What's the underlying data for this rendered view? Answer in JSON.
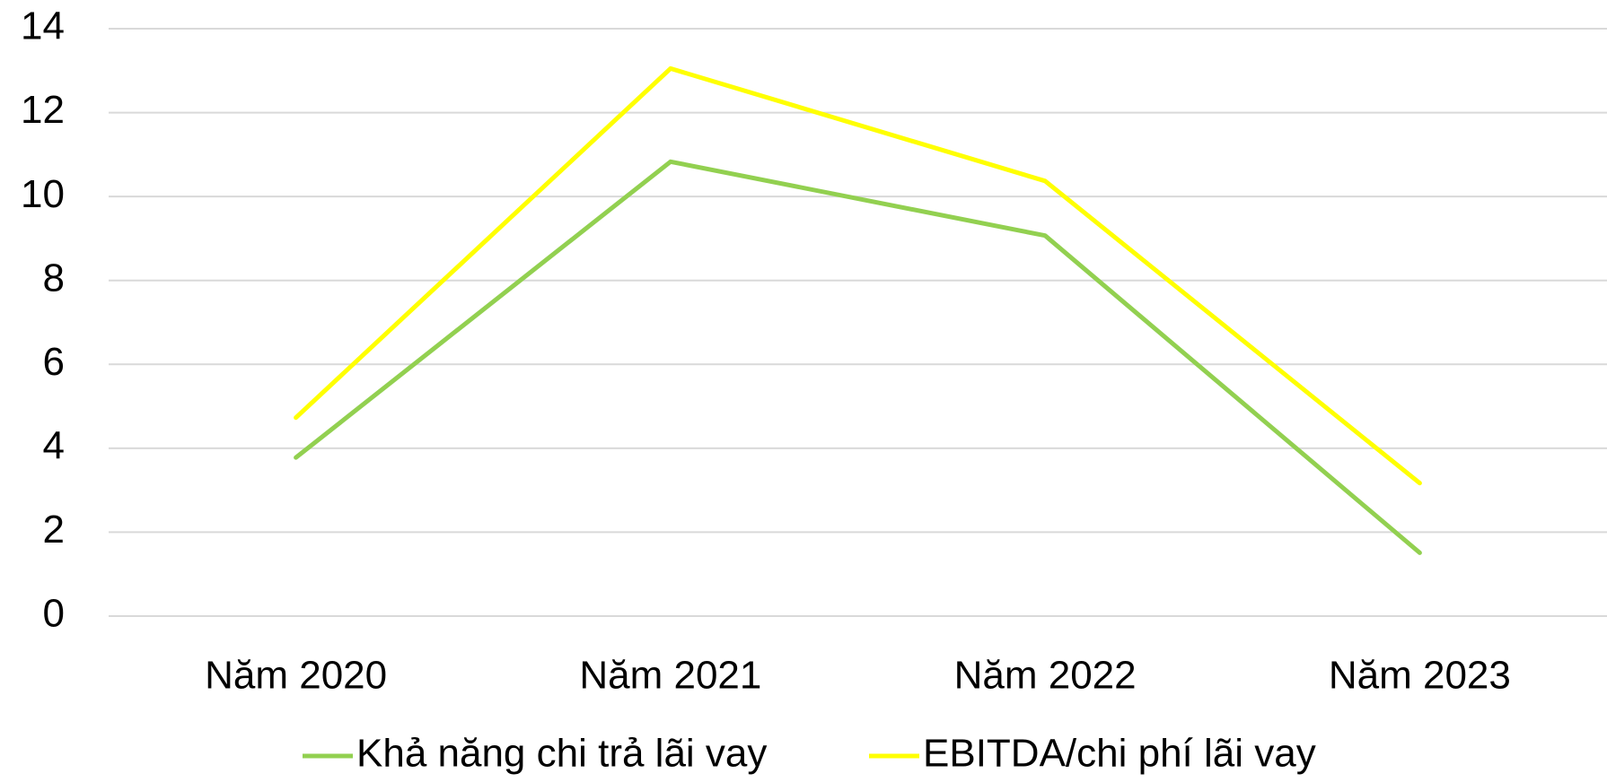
{
  "chart_data": {
    "type": "line",
    "categories": [
      "Năm 2020",
      "Năm 2021",
      "Năm 2022",
      "Năm 2023"
    ],
    "series": [
      {
        "name": "Khả năng chi trả lãi vay",
        "color": "#92d050",
        "values": [
          3.78,
          10.83,
          9.07,
          1.51
        ]
      },
      {
        "name": "EBITDA/chi phí lãi vay",
        "color": "#ffff00",
        "values": [
          4.73,
          13.05,
          10.37,
          3.17
        ]
      }
    ],
    "ylim": [
      0,
      14
    ],
    "yticks": [
      0,
      2,
      4,
      6,
      8,
      10,
      12,
      14
    ],
    "grid": true,
    "legend": "bottom"
  }
}
